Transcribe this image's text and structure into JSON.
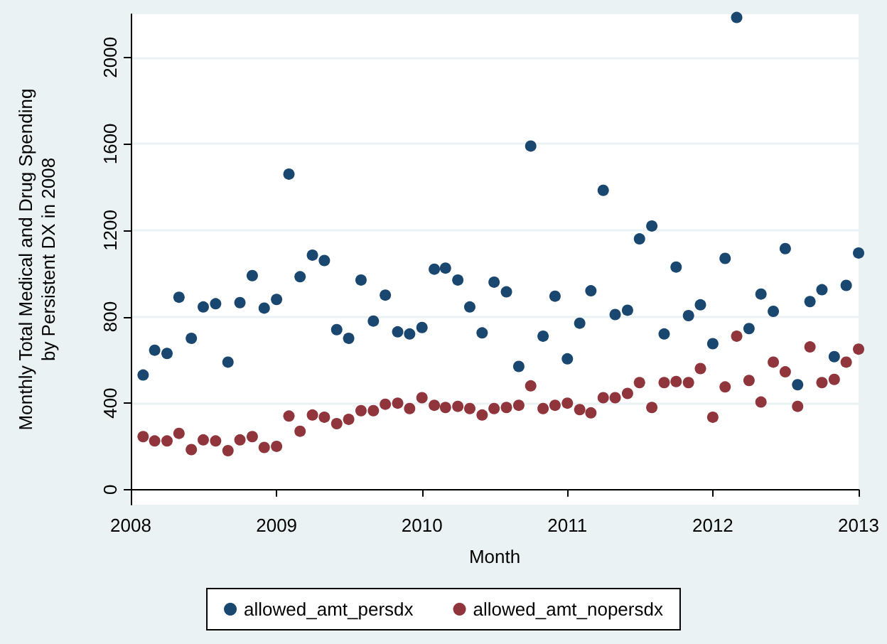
{
  "chart_data": {
    "type": "scatter",
    "xlabel": "Month",
    "ylabel": "Monthly Total Medical and Drug Spending\nby Persistent DX in 2008",
    "x": [
      "2008-02",
      "2008-03",
      "2008-04",
      "2008-05",
      "2008-06",
      "2008-07",
      "2008-08",
      "2008-09",
      "2008-10",
      "2008-11",
      "2008-12",
      "2009-01",
      "2009-02",
      "2009-03",
      "2009-04",
      "2009-05",
      "2009-06",
      "2009-07",
      "2009-08",
      "2009-09",
      "2009-10",
      "2009-11",
      "2009-12",
      "2010-01",
      "2010-02",
      "2010-03",
      "2010-04",
      "2010-05",
      "2010-06",
      "2010-07",
      "2010-08",
      "2010-09",
      "2010-10",
      "2010-11",
      "2010-12",
      "2011-01",
      "2011-02",
      "2011-03",
      "2011-04",
      "2011-05",
      "2011-06",
      "2011-07",
      "2011-08",
      "2011-09",
      "2011-10",
      "2011-11",
      "2011-12",
      "2012-01",
      "2012-02",
      "2012-03",
      "2012-04",
      "2012-05",
      "2012-06",
      "2012-07",
      "2012-08",
      "2012-09",
      "2012-10",
      "2012-11",
      "2012-12",
      "2013-01"
    ],
    "series": [
      {
        "name": "allowed_amt_persdx",
        "color": "#1a476f",
        "values": [
          530,
          645,
          630,
          890,
          700,
          845,
          860,
          590,
          865,
          990,
          840,
          880,
          1460,
          985,
          1085,
          1060,
          740,
          700,
          970,
          780,
          900,
          730,
          720,
          750,
          1020,
          1025,
          970,
          845,
          725,
          960,
          915,
          570,
          1590,
          710,
          895,
          605,
          770,
          920,
          1385,
          810,
          830,
          1160,
          1220,
          720,
          1030,
          805,
          855,
          675,
          1070,
          2185,
          745,
          905,
          825,
          1115,
          485,
          870,
          925,
          615,
          945,
          1095
        ]
      },
      {
        "name": "allowed_amt_nopersdx",
        "color": "#90353b",
        "values": [
          245,
          225,
          225,
          260,
          185,
          230,
          225,
          180,
          230,
          245,
          195,
          200,
          340,
          270,
          345,
          335,
          305,
          325,
          365,
          365,
          395,
          400,
          375,
          425,
          390,
          380,
          385,
          375,
          345,
          375,
          380,
          390,
          480,
          375,
          390,
          400,
          370,
          355,
          425,
          425,
          445,
          495,
          380,
          495,
          500,
          495,
          560,
          335,
          475,
          710,
          505,
          405,
          590,
          545,
          385,
          660,
          495,
          510,
          590,
          650
        ]
      }
    ],
    "xlim": [
      "2008-01",
      "2013-01"
    ],
    "xticks": [
      {
        "value": "2008-01",
        "label": "2008"
      },
      {
        "value": "2009-01",
        "label": "2009"
      },
      {
        "value": "2010-01",
        "label": "2010"
      },
      {
        "value": "2011-01",
        "label": "2011"
      },
      {
        "value": "2012-01",
        "label": "2012"
      },
      {
        "value": "2013-01",
        "label": "2013"
      }
    ],
    "ylim": [
      -70,
      2200
    ],
    "yticks": [
      0,
      400,
      800,
      1200,
      1600,
      2000
    ],
    "grid": "y",
    "legend": "bottom",
    "marker": "circle"
  }
}
